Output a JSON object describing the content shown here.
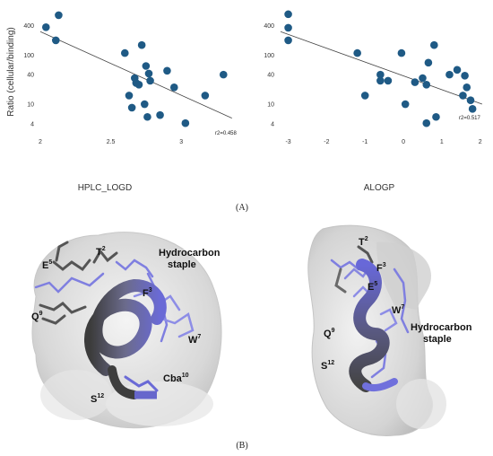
{
  "panel_a_label": "(A)",
  "panel_b_label": "(B)",
  "chart_data": [
    {
      "type": "scatter",
      "xlabel": "HPLC_LOGD",
      "ylabel": "Ratio (cellular/binding)",
      "yscale": "log",
      "xlim": [
        2,
        3.4
      ],
      "ylim": [
        2.2,
        800
      ],
      "xticks": [
        "2",
        "2.5",
        "3"
      ],
      "yticks": [
        "4",
        "10",
        "40",
        "100",
        "400"
      ],
      "annotation": "r2=0.458",
      "color": "#1f5a85",
      "trendline": [
        [
          2.0,
          300
        ],
        [
          3.36,
          5.2
        ]
      ],
      "points": [
        [
          2.04,
          370
        ],
        [
          2.11,
          200
        ],
        [
          2.13,
          650
        ],
        [
          2.6,
          110
        ],
        [
          2.63,
          15
        ],
        [
          2.65,
          8.5
        ],
        [
          2.67,
          34
        ],
        [
          2.68,
          27
        ],
        [
          2.7,
          25
        ],
        [
          2.72,
          160
        ],
        [
          2.74,
          10
        ],
        [
          2.75,
          60
        ],
        [
          2.76,
          5.5
        ],
        [
          2.77,
          42
        ],
        [
          2.78,
          30
        ],
        [
          2.85,
          6
        ],
        [
          2.9,
          48
        ],
        [
          2.95,
          22
        ],
        [
          3.03,
          4.1
        ],
        [
          3.17,
          15
        ],
        [
          3.3,
          40
        ]
      ]
    },
    {
      "type": "scatter",
      "xlabel": "ALOGP",
      "yscale": "log",
      "xlim": [
        -3.2,
        2.1
      ],
      "ylim": [
        2.2,
        800
      ],
      "xticks": [
        "-3",
        "-2",
        "-1",
        "0",
        "1",
        "2"
      ],
      "yticks": [
        "4",
        "10",
        "40",
        "100",
        "400"
      ],
      "annotation": "r2=0.517",
      "color": "#1f5a85",
      "trendline": [
        [
          -3.2,
          300
        ],
        [
          2.05,
          10
        ]
      ],
      "points": [
        [
          -3.0,
          680
        ],
        [
          -3.0,
          360
        ],
        [
          -3.0,
          200
        ],
        [
          -1.2,
          110
        ],
        [
          -1.0,
          15
        ],
        [
          -0.6,
          40
        ],
        [
          -0.6,
          30
        ],
        [
          -0.4,
          30
        ],
        [
          -0.05,
          110
        ],
        [
          0.05,
          10
        ],
        [
          0.3,
          28
        ],
        [
          0.5,
          34
        ],
        [
          0.6,
          4.1
        ],
        [
          0.6,
          25
        ],
        [
          0.65,
          70
        ],
        [
          0.8,
          160
        ],
        [
          0.85,
          5.5
        ],
        [
          1.2,
          40
        ],
        [
          1.4,
          50
        ],
        [
          1.55,
          15
        ],
        [
          1.6,
          38
        ],
        [
          1.65,
          22
        ],
        [
          1.75,
          12
        ],
        [
          1.8,
          8
        ]
      ]
    }
  ],
  "structure_left": {
    "labels": [
      {
        "id": "E",
        "text": "E",
        "sup": "5"
      },
      {
        "id": "T",
        "text": "T",
        "sup": "2"
      },
      {
        "id": "staple1",
        "text": "Hydrocarbon",
        "sup": ""
      },
      {
        "id": "staple2",
        "text": "staple",
        "sup": ""
      },
      {
        "id": "F",
        "text": "F",
        "sup": "3"
      },
      {
        "id": "Q",
        "text": "Q",
        "sup": "9"
      },
      {
        "id": "W",
        "text": "W",
        "sup": "7"
      },
      {
        "id": "Cba",
        "text": "Cba",
        "sup": "10"
      },
      {
        "id": "S",
        "text": "S",
        "sup": "12"
      }
    ]
  },
  "structure_right": {
    "labels": [
      {
        "id": "T",
        "text": "T",
        "sup": "2"
      },
      {
        "id": "F",
        "text": "F",
        "sup": "3"
      },
      {
        "id": "E",
        "text": "E",
        "sup": "5"
      },
      {
        "id": "W",
        "text": "W",
        "sup": "7"
      },
      {
        "id": "Q",
        "text": "Q",
        "sup": "9"
      },
      {
        "id": "staple1",
        "text": "Hydrocarbon",
        "sup": ""
      },
      {
        "id": "staple2",
        "text": "staple",
        "sup": ""
      },
      {
        "id": "S",
        "text": "S",
        "sup": "12"
      }
    ]
  }
}
